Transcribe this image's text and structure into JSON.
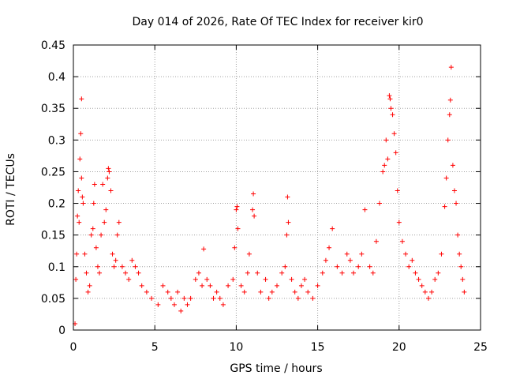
{
  "chart_data": {
    "type": "scatter",
    "title": "Day 014 of 2026, Rate Of TEC Index for receiver kir0",
    "xlabel": "GPS time / hours",
    "ylabel": "ROTI / TECUs",
    "xlim": [
      0,
      25
    ],
    "ylim": [
      0,
      0.45
    ],
    "xticks": [
      0,
      5,
      10,
      15,
      20,
      25
    ],
    "xtick_labels": [
      "0",
      "5",
      "10",
      "15",
      "20",
      "25"
    ],
    "yticks": [
      0,
      0.05,
      0.1,
      0.15,
      0.2,
      0.25,
      0.3,
      0.35,
      0.4,
      0.45
    ],
    "ytick_labels": [
      "0",
      "0.05",
      "0.1",
      "0.15",
      "0.2",
      "0.25",
      "0.3",
      "0.35",
      "0.4",
      "0.45"
    ],
    "grid": true,
    "marker": "+",
    "marker_color": "#ff0000",
    "series": [
      {
        "name": "ROTI",
        "points": [
          [
            0.1,
            0.01
          ],
          [
            0.15,
            0.08
          ],
          [
            0.2,
            0.12
          ],
          [
            0.25,
            0.18
          ],
          [
            0.3,
            0.22
          ],
          [
            0.35,
            0.17
          ],
          [
            0.4,
            0.27
          ],
          [
            0.45,
            0.31
          ],
          [
            0.5,
            0.365
          ],
          [
            0.5,
            0.24
          ],
          [
            0.55,
            0.21
          ],
          [
            0.6,
            0.2
          ],
          [
            0.7,
            0.12
          ],
          [
            0.8,
            0.09
          ],
          [
            0.9,
            0.06
          ],
          [
            1.0,
            0.07
          ],
          [
            1.1,
            0.15
          ],
          [
            1.2,
            0.16
          ],
          [
            1.25,
            0.2
          ],
          [
            1.3,
            0.23
          ],
          [
            1.4,
            0.13
          ],
          [
            1.5,
            0.1
          ],
          [
            1.6,
            0.09
          ],
          [
            1.7,
            0.15
          ],
          [
            1.8,
            0.23
          ],
          [
            1.9,
            0.17
          ],
          [
            2.0,
            0.19
          ],
          [
            2.1,
            0.24
          ],
          [
            2.15,
            0.255
          ],
          [
            2.2,
            0.25
          ],
          [
            2.3,
            0.22
          ],
          [
            2.4,
            0.12
          ],
          [
            2.5,
            0.1
          ],
          [
            2.6,
            0.11
          ],
          [
            2.7,
            0.15
          ],
          [
            2.8,
            0.17
          ],
          [
            3.0,
            0.1
          ],
          [
            3.2,
            0.09
          ],
          [
            3.4,
            0.08
          ],
          [
            3.6,
            0.11
          ],
          [
            3.8,
            0.1
          ],
          [
            4.0,
            0.09
          ],
          [
            4.2,
            0.07
          ],
          [
            4.5,
            0.06
          ],
          [
            4.8,
            0.05
          ],
          [
            5.2,
            0.04
          ],
          [
            5.5,
            0.07
          ],
          [
            5.8,
            0.06
          ],
          [
            6.0,
            0.05
          ],
          [
            6.2,
            0.04
          ],
          [
            6.4,
            0.06
          ],
          [
            6.6,
            0.03
          ],
          [
            6.8,
            0.05
          ],
          [
            7.0,
            0.04
          ],
          [
            7.2,
            0.05
          ],
          [
            7.5,
            0.08
          ],
          [
            7.7,
            0.09
          ],
          [
            7.9,
            0.07
          ],
          [
            8.0,
            0.128
          ],
          [
            8.2,
            0.08
          ],
          [
            8.4,
            0.07
          ],
          [
            8.6,
            0.05
          ],
          [
            8.8,
            0.06
          ],
          [
            9.0,
            0.05
          ],
          [
            9.2,
            0.04
          ],
          [
            9.5,
            0.07
          ],
          [
            9.8,
            0.08
          ],
          [
            9.9,
            0.13
          ],
          [
            10.0,
            0.19
          ],
          [
            10.05,
            0.195
          ],
          [
            10.1,
            0.16
          ],
          [
            10.3,
            0.07
          ],
          [
            10.5,
            0.06
          ],
          [
            10.7,
            0.09
          ],
          [
            10.8,
            0.12
          ],
          [
            11.0,
            0.19
          ],
          [
            11.05,
            0.215
          ],
          [
            11.1,
            0.18
          ],
          [
            11.3,
            0.09
          ],
          [
            11.5,
            0.06
          ],
          [
            11.8,
            0.08
          ],
          [
            12.0,
            0.05
          ],
          [
            12.2,
            0.06
          ],
          [
            12.5,
            0.07
          ],
          [
            12.8,
            0.09
          ],
          [
            13.0,
            0.1
          ],
          [
            13.1,
            0.15
          ],
          [
            13.15,
            0.21
          ],
          [
            13.2,
            0.17
          ],
          [
            13.4,
            0.08
          ],
          [
            13.6,
            0.06
          ],
          [
            13.8,
            0.05
          ],
          [
            14.0,
            0.07
          ],
          [
            14.2,
            0.08
          ],
          [
            14.4,
            0.06
          ],
          [
            14.7,
            0.05
          ],
          [
            15.0,
            0.07
          ],
          [
            15.3,
            0.09
          ],
          [
            15.5,
            0.11
          ],
          [
            15.7,
            0.13
          ],
          [
            15.9,
            0.16
          ],
          [
            16.2,
            0.1
          ],
          [
            16.5,
            0.09
          ],
          [
            16.8,
            0.12
          ],
          [
            17.0,
            0.11
          ],
          [
            17.2,
            0.09
          ],
          [
            17.5,
            0.1
          ],
          [
            17.7,
            0.12
          ],
          [
            17.9,
            0.19
          ],
          [
            18.2,
            0.1
          ],
          [
            18.4,
            0.09
          ],
          [
            18.6,
            0.14
          ],
          [
            18.8,
            0.2
          ],
          [
            19.0,
            0.25
          ],
          [
            19.1,
            0.26
          ],
          [
            19.2,
            0.3
          ],
          [
            19.3,
            0.27
          ],
          [
            19.4,
            0.37
          ],
          [
            19.45,
            0.365
          ],
          [
            19.5,
            0.35
          ],
          [
            19.6,
            0.34
          ],
          [
            19.7,
            0.31
          ],
          [
            19.8,
            0.28
          ],
          [
            19.9,
            0.22
          ],
          [
            20.0,
            0.17
          ],
          [
            20.2,
            0.14
          ],
          [
            20.4,
            0.12
          ],
          [
            20.6,
            0.1
          ],
          [
            20.8,
            0.11
          ],
          [
            21.0,
            0.09
          ],
          [
            21.2,
            0.08
          ],
          [
            21.4,
            0.07
          ],
          [
            21.6,
            0.06
          ],
          [
            21.8,
            0.05
          ],
          [
            22.0,
            0.06
          ],
          [
            22.2,
            0.08
          ],
          [
            22.4,
            0.09
          ],
          [
            22.6,
            0.12
          ],
          [
            22.8,
            0.195
          ],
          [
            22.9,
            0.24
          ],
          [
            23.0,
            0.3
          ],
          [
            23.1,
            0.34
          ],
          [
            23.15,
            0.363
          ],
          [
            23.2,
            0.415
          ],
          [
            23.3,
            0.26
          ],
          [
            23.4,
            0.22
          ],
          [
            23.5,
            0.2
          ],
          [
            23.6,
            0.15
          ],
          [
            23.7,
            0.12
          ],
          [
            23.8,
            0.1
          ],
          [
            23.9,
            0.08
          ],
          [
            24.0,
            0.06
          ]
        ]
      }
    ]
  }
}
